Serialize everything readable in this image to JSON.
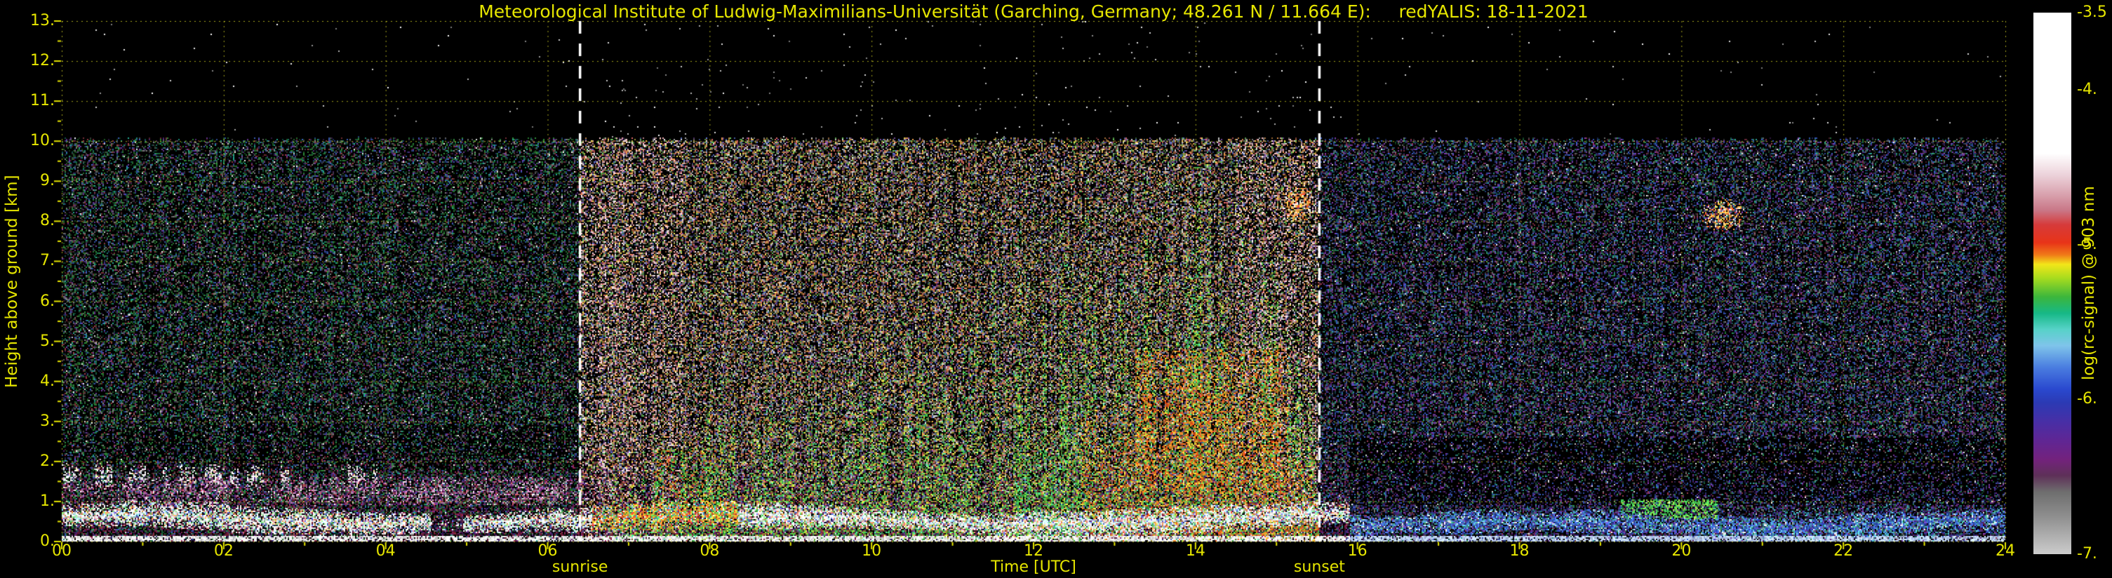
{
  "page": {
    "background": "#000000",
    "accent": "#e6e600",
    "sunline_color": "#ffffff",
    "grid_color": "#ebeb28"
  },
  "chart_data": {
    "type": "heatmap",
    "title": "Meteorological Institute of Ludwig-Maximilians-Universität (Garching, Germany; 48.261 N / 11.664 E):     redYALIS: 18-11-2021",
    "xlabel": "Time [UTC]",
    "ylabel": "Height above ground [km]",
    "xlim": [
      0,
      24
    ],
    "ylim": [
      0,
      13
    ],
    "grid": true,
    "xticks": {
      "values": [
        0,
        2,
        4,
        6,
        8,
        10,
        12,
        14,
        16,
        18,
        20,
        22,
        24
      ],
      "labels": [
        "00",
        "02",
        "04",
        "06",
        "08",
        "10",
        "12",
        "14",
        "16",
        "18",
        "20",
        "22",
        "24"
      ]
    },
    "yticks": {
      "values": [
        0,
        1,
        2,
        3,
        4,
        5,
        6,
        7,
        8,
        9,
        10,
        11,
        12,
        13
      ],
      "labels": [
        "0.",
        "1.",
        "2.",
        "3.",
        "4.",
        "5.",
        "6.",
        "7.",
        "8.",
        "9.",
        "10.",
        "11.",
        "12.",
        "13."
      ]
    },
    "sunrise": {
      "time_utc": 6.4,
      "label": "sunrise"
    },
    "sunset": {
      "time_utc": 15.53,
      "label": "sunset"
    },
    "colorbar": {
      "label": "log(rc-signal) @ 903 nm",
      "range_top": -3.5,
      "range_bottom": -7.0,
      "ticks": [
        {
          "value": -3.5,
          "label": "-3.5"
        },
        {
          "value": -4.0,
          "label": "-4."
        },
        {
          "value": -5.0,
          "label": "-5."
        },
        {
          "value": -6.0,
          "label": "-6."
        },
        {
          "value": -7.0,
          "label": "-7."
        }
      ],
      "stops": [
        {
          "pos": 0.0,
          "color": "#ffffff"
        },
        {
          "pos": 0.26,
          "color": "#ffffff"
        },
        {
          "pos": 0.3,
          "color": "#ecd2da"
        },
        {
          "pos": 0.335,
          "color": "#d9a3af"
        },
        {
          "pos": 0.365,
          "color": "#c97787"
        },
        {
          "pos": 0.392,
          "color": "#d63a3a"
        },
        {
          "pos": 0.425,
          "color": "#e83418"
        },
        {
          "pos": 0.447,
          "color": "#f07818"
        },
        {
          "pos": 0.465,
          "color": "#f2e619"
        },
        {
          "pos": 0.49,
          "color": "#a8dc1e"
        },
        {
          "pos": 0.525,
          "color": "#3cb63c"
        },
        {
          "pos": 0.555,
          "color": "#16b886"
        },
        {
          "pos": 0.585,
          "color": "#57d2c8"
        },
        {
          "pos": 0.615,
          "color": "#7fc4ea"
        },
        {
          "pos": 0.655,
          "color": "#4a7de0"
        },
        {
          "pos": 0.695,
          "color": "#2a49cf"
        },
        {
          "pos": 0.72,
          "color": "#2b3ab4"
        },
        {
          "pos": 0.755,
          "color": "#472fa6"
        },
        {
          "pos": 0.79,
          "color": "#5f2694"
        },
        {
          "pos": 0.825,
          "color": "#73227d"
        },
        {
          "pos": 0.855,
          "color": "#5e3058"
        },
        {
          "pos": 0.885,
          "color": "#6e6e6e"
        },
        {
          "pos": 0.93,
          "color": "#8e8e8e"
        },
        {
          "pos": 1.0,
          "color": "#cccccc"
        }
      ]
    },
    "features": {
      "seed": 20211118,
      "data_top_km": 10.05,
      "haze_top_km": 2.4,
      "plume_envelope_utc_km": [
        [
          6.8,
          1.2
        ],
        [
          8,
          2.6
        ],
        [
          9,
          3.3
        ],
        [
          10,
          3.6
        ],
        [
          11,
          4.3
        ],
        [
          12,
          5.2
        ],
        [
          13,
          6.2
        ],
        [
          13.8,
          7.0
        ],
        [
          14.5,
          6.6
        ],
        [
          15.0,
          5.2
        ],
        [
          15.4,
          3.2
        ],
        [
          15.6,
          1.5
        ]
      ],
      "aerosol_layer_day": {
        "span_utc": [
          0,
          15.9
        ],
        "center_km": 0.55,
        "halfwidth_km": 0.3
      },
      "aerosol_layer_evening": {
        "span_utc": [
          15.9,
          24
        ],
        "center_km": 0.42,
        "halfwidth_km": 0.28
      },
      "morning_band": {
        "span_utc": [
          0,
          6.45
        ],
        "center_km": 1.25,
        "halfwidth_km": 0.35
      },
      "morning_cloud_patches": {
        "span_utc": [
          0,
          3.9
        ],
        "center_km": 1.62,
        "halfwidth_km": 0.38
      },
      "evening_green_patch": {
        "span_utc": [
          19.25,
          20.45
        ],
        "height_km": [
          0.55,
          1.05
        ]
      },
      "elevated_spots": [
        {
          "utc": 15.27,
          "height_km": 8.45,
          "rt_h": 0.22,
          "rh_km": 0.55
        },
        {
          "utc": 20.52,
          "height_km": 8.15,
          "rt_h": 0.3,
          "rh_km": 0.45
        }
      ]
    }
  }
}
